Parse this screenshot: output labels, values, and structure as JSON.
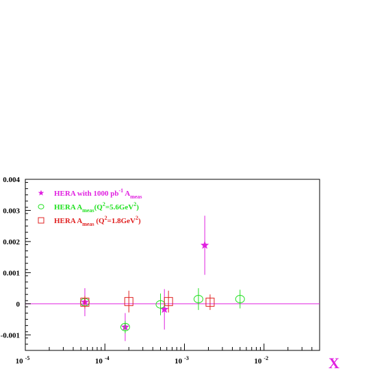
{
  "chart_data": {
    "type": "scatter",
    "xscale": "log",
    "xlim": [
      1e-05,
      0.05
    ],
    "ylim": [
      -0.0015,
      0.004
    ],
    "xlabel": "X",
    "ylabel": "",
    "title": "",
    "grid": false,
    "legend_placement": "top-left",
    "zero_line_color": "#e020e0",
    "x_tick_labels": [
      {
        "value": 1e-05,
        "base": "10",
        "exp": "-5"
      },
      {
        "value": 0.0001,
        "base": "10",
        "exp": "-4"
      },
      {
        "value": 0.001,
        "base": "10",
        "exp": "-3"
      },
      {
        "value": 0.01,
        "base": "10",
        "exp": "-2"
      }
    ],
    "y_ticks": [
      {
        "value": 0.004,
        "label": "0.004"
      },
      {
        "value": 0.003,
        "label": "0.003"
      },
      {
        "value": 0.002,
        "label": "0.002"
      },
      {
        "value": 0.001,
        "label": "0.001"
      },
      {
        "value": 0,
        "label": "0"
      },
      {
        "value": -0.001,
        "label": "-0.001"
      }
    ],
    "series": [
      {
        "marker": "star",
        "color": "#e020e0",
        "legend_parts": [
          {
            "t": "HERA with 1000 pb",
            "k": "n"
          },
          {
            "t": "-1",
            "k": "sup"
          },
          {
            "t": " A",
            "k": "n"
          },
          {
            "t": "meas",
            "k": "sub"
          }
        ],
        "points": [
          {
            "x": 5.6e-05,
            "y": 5e-05,
            "err": 0.00045
          },
          {
            "x": 0.00018,
            "y": -0.00075,
            "err": 0.00045
          },
          {
            "x": 0.00056,
            "y": -0.00018,
            "err": 0.00065
          },
          {
            "x": 0.0018,
            "y": 0.00188,
            "err": 0.00095
          }
        ]
      },
      {
        "marker": "circle",
        "color": "#20e020",
        "legend_parts": [
          {
            "t": "HERA A",
            "k": "n"
          },
          {
            "t": "meas",
            "k": "sub"
          },
          {
            "t": "(Q",
            "k": "n"
          },
          {
            "t": "2",
            "k": "sup"
          },
          {
            "t": "=5.6GeV",
            "k": "n"
          },
          {
            "t": "2",
            "k": "sup"
          },
          {
            "t": ")",
            "k": "n"
          }
        ],
        "points": [
          {
            "x": 5.6e-05,
            "y": 5e-05,
            "err": 0.0002
          },
          {
            "x": 0.00018,
            "y": -0.00075,
            "err": 0.0002
          },
          {
            "x": 0.0005,
            "y": -2e-05,
            "err": 0.00035
          },
          {
            "x": 0.0015,
            "y": 0.00015,
            "err": 0.00035
          },
          {
            "x": 0.005,
            "y": 0.00015,
            "err": 0.0003
          }
        ]
      },
      {
        "marker": "square",
        "color": "#e02020",
        "legend_parts": [
          {
            "t": "HERA A",
            "k": "n"
          },
          {
            "t": "meas",
            "k": "sub"
          },
          {
            "t": " (Q",
            "k": "n"
          },
          {
            "t": "2",
            "k": "sup"
          },
          {
            "t": "=1.8GeV",
            "k": "n"
          },
          {
            "t": "2",
            "k": "sup"
          },
          {
            "t": ")",
            "k": "n"
          }
        ],
        "points": [
          {
            "x": 5.6e-05,
            "y": 5e-05,
            "err": 0.0002
          },
          {
            "x": 0.0002,
            "y": 7e-05,
            "err": 0.00035
          },
          {
            "x": 0.00063,
            "y": 7e-05,
            "err": 0.00035
          },
          {
            "x": 0.0021,
            "y": 5e-05,
            "err": 0.00025
          }
        ]
      }
    ]
  }
}
